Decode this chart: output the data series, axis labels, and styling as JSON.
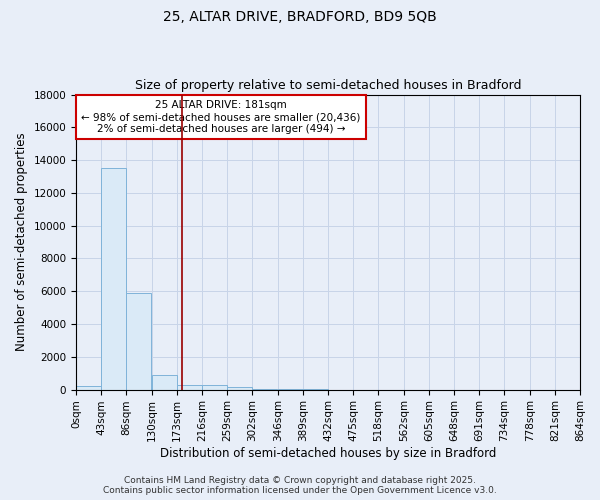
{
  "title1": "25, ALTAR DRIVE, BRADFORD, BD9 5QB",
  "title2": "Size of property relative to semi-detached houses in Bradford",
  "xlabel": "Distribution of semi-detached houses by size in Bradford",
  "ylabel": "Number of semi-detached properties",
  "bin_labels": [
    "0sqm",
    "43sqm",
    "86sqm",
    "130sqm",
    "173sqm",
    "216sqm",
    "259sqm",
    "302sqm",
    "346sqm",
    "389sqm",
    "432sqm",
    "475sqm",
    "518sqm",
    "562sqm",
    "605sqm",
    "648sqm",
    "691sqm",
    "734sqm",
    "778sqm",
    "821sqm",
    "864sqm"
  ],
  "bin_edges": [
    0,
    43,
    86,
    130,
    173,
    216,
    259,
    302,
    346,
    389,
    432,
    475,
    518,
    562,
    605,
    648,
    691,
    734,
    778,
    821,
    864
  ],
  "bar_heights": [
    200,
    13500,
    5900,
    900,
    300,
    250,
    150,
    50,
    20,
    10,
    5,
    3,
    2,
    1,
    1,
    0,
    0,
    0,
    0,
    0
  ],
  "bar_color": "#daeaf7",
  "bar_edge_color": "#7fb3d9",
  "grid_color": "#c8d4e8",
  "background_color": "#e8eef8",
  "vline_x": 181,
  "vline_color": "#990000",
  "annotation_line1": "25 ALTAR DRIVE: 181sqm",
  "annotation_line2": "← 98% of semi-detached houses are smaller (20,436)",
  "annotation_line3": "2% of semi-detached houses are larger (494) →",
  "annotation_box_color": "white",
  "annotation_box_edge": "#cc0000",
  "ylim": [
    0,
    18000
  ],
  "yticks": [
    0,
    2000,
    4000,
    6000,
    8000,
    10000,
    12000,
    14000,
    16000,
    18000
  ],
  "footer1": "Contains HM Land Registry data © Crown copyright and database right 2025.",
  "footer2": "Contains public sector information licensed under the Open Government Licence v3.0.",
  "title_fontsize": 10,
  "subtitle_fontsize": 9,
  "axis_label_fontsize": 8.5,
  "tick_fontsize": 7.5,
  "annotation_fontsize": 7.5,
  "footer_fontsize": 6.5
}
